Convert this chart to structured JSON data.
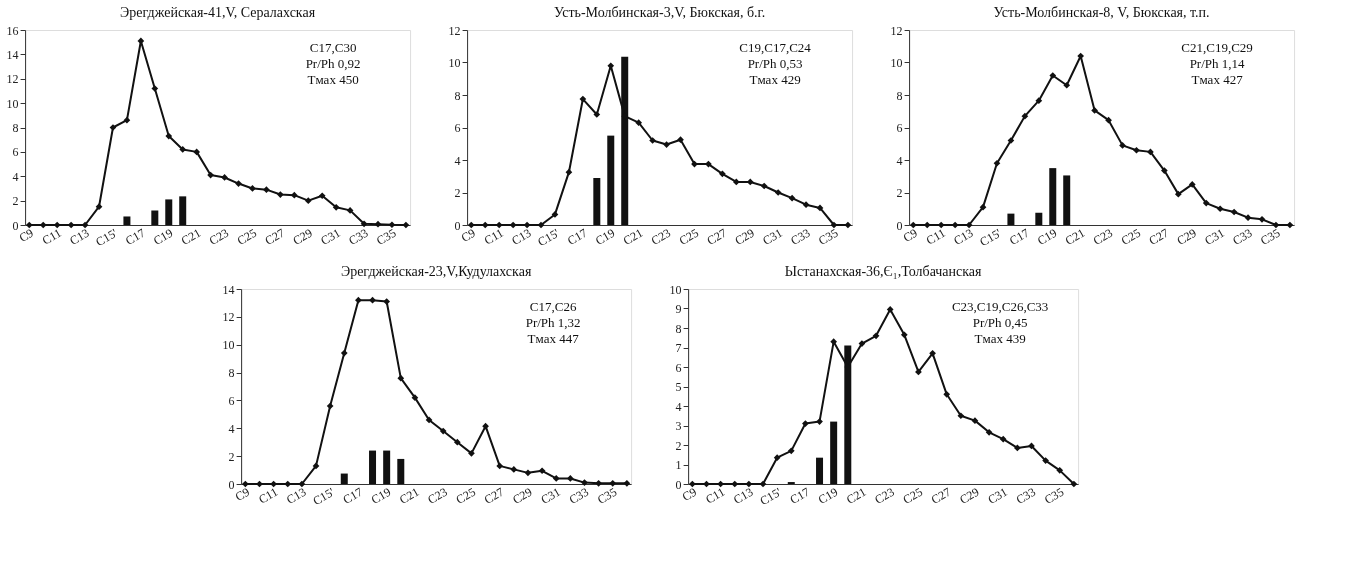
{
  "chart_data": [
    {
      "type": "line",
      "title": "Эрегджейская-41,V, Сералахская",
      "categories": [
        "C9",
        null,
        "C11",
        null,
        "C13",
        null,
        "C15'",
        null,
        "C17",
        null,
        "C19",
        null,
        "C21",
        null,
        "C23",
        null,
        "C25",
        null,
        "C27",
        null,
        "C29",
        null,
        "C31",
        null,
        "C33",
        null,
        "C35",
        null
      ],
      "ylim": [
        0,
        16
      ],
      "yticks": [
        0,
        2,
        4,
        6,
        8,
        10,
        12,
        14,
        16
      ],
      "grid": false,
      "legend": false,
      "marker": "diamond",
      "annotations": [
        "C17,C30",
        "Pr/Ph 0,92",
        "Tмах 450"
      ],
      "series": [
        {
          "color": "#111111",
          "values": [
            0,
            0,
            0,
            0,
            0,
            1.5,
            8,
            8.6,
            15.1,
            11.2,
            7.3,
            6.2,
            6,
            4.1,
            3.9,
            3.4,
            3,
            2.9,
            2.5,
            2.45,
            2,
            2.4,
            1.45,
            1.2,
            0.1,
            0.07,
            0.02,
            0
          ]
        },
        {
          "type": "bar",
          "color": "#111111",
          "values": [
            null,
            null,
            null,
            null,
            null,
            null,
            null,
            0.7,
            null,
            1.2,
            2.1,
            2.35,
            null,
            null,
            null,
            null,
            null,
            null,
            null,
            null,
            null,
            null,
            null,
            null,
            null,
            null,
            null,
            null
          ]
        }
      ]
    },
    {
      "type": "line",
      "title": "Усть-Молбинская-3,V, Бюкская, б.г.",
      "categories": [
        "C9",
        null,
        "C11",
        null,
        "C13",
        null,
        "C15'",
        null,
        "C17",
        null,
        "C19",
        null,
        "C21",
        null,
        "C23",
        null,
        "C25",
        null,
        "C27",
        null,
        "C29",
        null,
        "C31",
        null,
        "C33",
        null,
        "C35",
        null
      ],
      "ylim": [
        0,
        12
      ],
      "yticks": [
        0,
        2,
        4,
        6,
        8,
        10,
        12
      ],
      "grid": false,
      "legend": false,
      "marker": "diamond",
      "annotations": [
        "C19,C17,C24",
        "Pr/Ph 0,53",
        "Tмах 429"
      ],
      "series": [
        {
          "color": "#111111",
          "values": [
            0,
            0,
            0,
            0,
            0,
            0,
            0.65,
            3.25,
            7.75,
            6.8,
            9.8,
            6.7,
            6.3,
            5.2,
            4.95,
            5.25,
            3.75,
            3.75,
            3.15,
            2.65,
            2.65,
            2.4,
            2.0,
            1.65,
            1.25,
            1.05,
            0,
            0
          ]
        },
        {
          "type": "bar",
          "color": "#111111",
          "values": [
            null,
            null,
            null,
            null,
            null,
            null,
            null,
            null,
            null,
            2.9,
            5.5,
            10.35,
            null,
            null,
            null,
            null,
            null,
            null,
            null,
            null,
            null,
            null,
            null,
            null,
            null,
            null,
            null,
            null
          ]
        }
      ]
    },
    {
      "type": "line",
      "title": "Усть-Молбинская-8, V, Бюкская, т.п.",
      "categories": [
        "C9",
        null,
        "C11",
        null,
        "C13",
        null,
        "C15'",
        null,
        "C17",
        null,
        "C19",
        null,
        "C21",
        null,
        "C23",
        null,
        "C25",
        null,
        "C27",
        null,
        "C29",
        null,
        "C31",
        null,
        "C33",
        null,
        "C35",
        null
      ],
      "ylim": [
        0,
        12
      ],
      "yticks": [
        0,
        2,
        4,
        6,
        8,
        10,
        12
      ],
      "grid": false,
      "legend": false,
      "marker": "diamond",
      "annotations": [
        "C21,C19,C29",
        "Pr/Ph 1,14",
        "Tмах 427"
      ],
      "series": [
        {
          "color": "#111111",
          "values": [
            0,
            0,
            0,
            0,
            0,
            1.1,
            3.8,
            5.2,
            6.7,
            7.65,
            9.2,
            8.6,
            10.4,
            7.05,
            6.45,
            4.9,
            4.6,
            4.5,
            3.35,
            1.9,
            2.5,
            1.35,
            1.0,
            0.8,
            0.45,
            0.35,
            0,
            0
          ]
        },
        {
          "type": "bar",
          "color": "#111111",
          "values": [
            null,
            null,
            null,
            null,
            null,
            null,
            null,
            0.7,
            null,
            0.75,
            3.5,
            3.05,
            null,
            null,
            null,
            null,
            null,
            null,
            null,
            null,
            null,
            null,
            null,
            null,
            null,
            null,
            null,
            null
          ]
        }
      ]
    },
    {
      "type": "line",
      "title": "Эрегджейская-23,V,Кудулахская",
      "categories": [
        "C9",
        null,
        "C11",
        null,
        "C13",
        null,
        "C15'",
        null,
        "C17",
        null,
        "C19",
        null,
        "C21",
        null,
        "C23",
        null,
        "C25",
        null,
        "C27",
        null,
        "C29",
        null,
        "C31",
        null,
        "C33",
        null,
        "C35",
        null
      ],
      "ylim": [
        0,
        14
      ],
      "yticks": [
        0,
        2,
        4,
        6,
        8,
        10,
        12,
        14
      ],
      "grid": false,
      "legend": false,
      "marker": "diamond",
      "annotations": [
        "C17,C26",
        "Pr/Ph 1,32",
        "Tмах 447"
      ],
      "series": [
        {
          "color": "#111111",
          "values": [
            0,
            0,
            0,
            0,
            0,
            1.3,
            5.6,
            9.4,
            13.2,
            13.2,
            13.1,
            7.6,
            6.2,
            4.6,
            3.8,
            3.0,
            2.2,
            4.15,
            1.3,
            1.05,
            0.8,
            0.95,
            0.4,
            0.4,
            0.1,
            0.05,
            0.05,
            0.05
          ]
        },
        {
          "type": "bar",
          "color": "#111111",
          "values": [
            null,
            null,
            null,
            null,
            null,
            null,
            null,
            0.75,
            null,
            2.4,
            2.4,
            1.8,
            null,
            null,
            null,
            null,
            null,
            null,
            null,
            null,
            null,
            null,
            null,
            null,
            null,
            null,
            null,
            null
          ]
        }
      ]
    },
    {
      "type": "line",
      "title": "Ыстанахская-36,Є₁,Толбачанская",
      "categories": [
        "C9",
        null,
        "C11",
        null,
        "C13",
        null,
        "C15'",
        null,
        "C17",
        null,
        "C19",
        null,
        "C21",
        null,
        "C23",
        null,
        "C25",
        null,
        "C27",
        null,
        "C29",
        null,
        "C31",
        null,
        "C33",
        null,
        "C35",
        null
      ],
      "ylim": [
        0,
        10
      ],
      "yticks": [
        0,
        1,
        2,
        3,
        4,
        5,
        6,
        7,
        8,
        9,
        10
      ],
      "grid": false,
      "legend": false,
      "marker": "diamond",
      "annotations": [
        "C23,C19,C26,C33",
        "Pr/Ph 0,45",
        "Tмах 439"
      ],
      "series": [
        {
          "color": "#111111",
          "values": [
            0,
            0,
            0,
            0,
            0,
            0,
            1.35,
            1.7,
            3.1,
            3.2,
            7.3,
            6.0,
            7.2,
            7.6,
            8.95,
            7.65,
            5.75,
            6.7,
            4.6,
            3.5,
            3.25,
            2.65,
            2.3,
            1.85,
            1.95,
            1.2,
            0.7,
            0
          ]
        },
        {
          "type": "bar",
          "color": "#111111",
          "values": [
            null,
            null,
            null,
            null,
            null,
            null,
            null,
            0.1,
            null,
            1.35,
            3.2,
            7.1,
            null,
            null,
            null,
            null,
            null,
            null,
            null,
            null,
            null,
            null,
            null,
            null,
            null,
            null,
            null,
            null
          ]
        }
      ]
    }
  ]
}
